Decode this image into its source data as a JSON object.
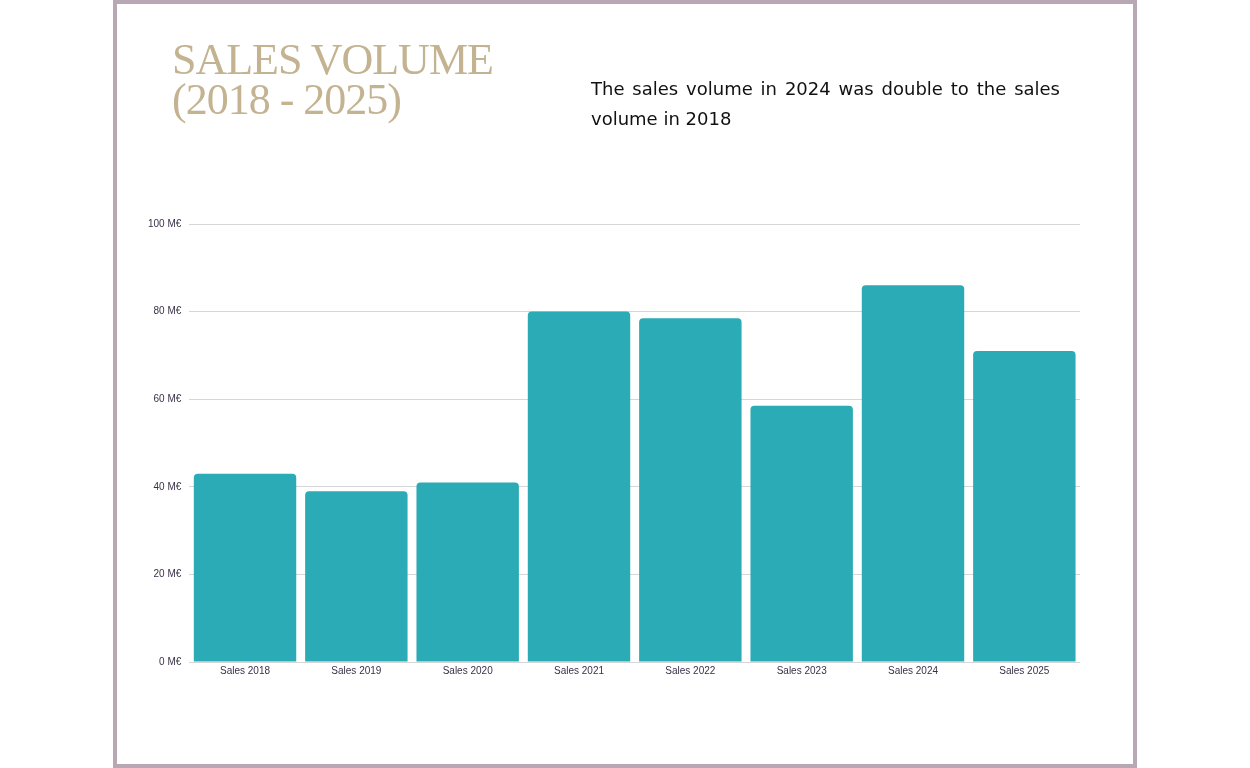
{
  "chart_data": {
    "type": "bar",
    "title": "SALES VOLUME (2018 - 2025)",
    "annotations": [
      "The sales volume in 2024 was double to the sales volume in 2018"
    ],
    "categories": [
      "Sales 2018",
      "Sales 2019",
      "Sales 2020",
      "Sales 2021",
      "Sales 2022",
      "Sales 2023",
      "Sales 2024",
      "Sales 2025"
    ],
    "values": [
      43,
      39,
      41,
      80,
      78.5,
      58.5,
      86,
      71
    ],
    "color": "#2aabb5",
    "ylim": [
      0,
      100
    ],
    "yticks": [
      {
        "value": 0,
        "label": "0 M€"
      },
      {
        "value": 20,
        "label": "20 M€"
      },
      {
        "value": 40,
        "label": "40 M€"
      },
      {
        "value": 60,
        "label": "60 M€"
      },
      {
        "value": 80,
        "label": "80 M€"
      },
      {
        "value": 100,
        "label": "100 M€"
      }
    ],
    "grid": "y",
    "legend": false
  }
}
